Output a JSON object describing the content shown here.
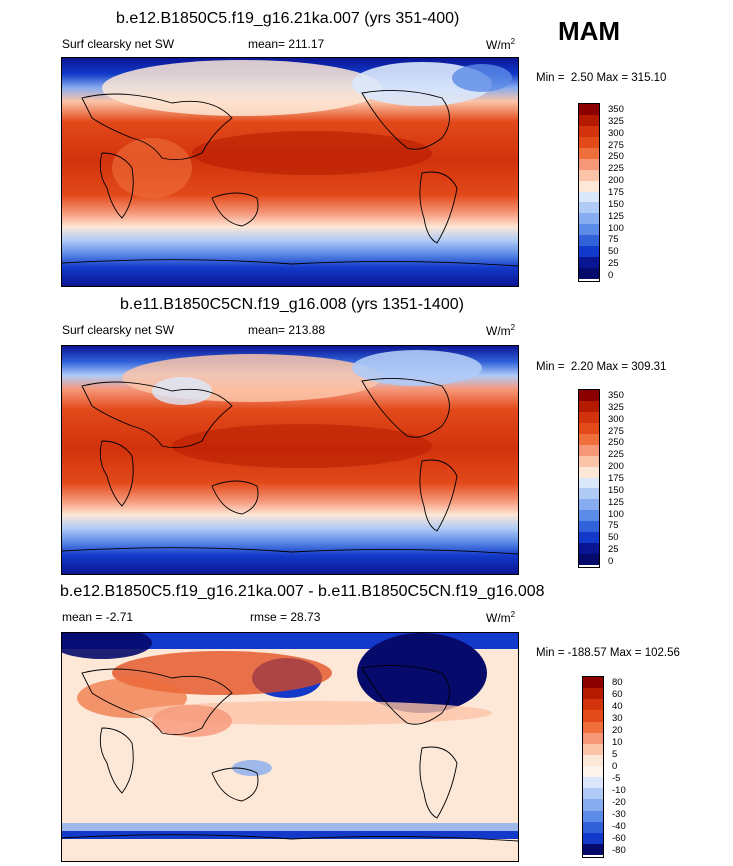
{
  "season": "MAM",
  "panels": [
    {
      "title": "b.e12.B1850C5.f19_g16.21ka.007 (yrs 351-400)",
      "left_label": "Surf clearsky net SW",
      "stat_label": "mean=",
      "stat_value": "211.17",
      "stat2_label": "",
      "stat2_value": "",
      "units": "W/m",
      "units_sup": "2",
      "min_label": "Min =",
      "min_value": "2.50",
      "max_label": "Max =",
      "max_value": "315.10",
      "colorbar_labels": [
        "350",
        "325",
        "300",
        "275",
        "250",
        "225",
        "200",
        "175",
        "150",
        "125",
        "100",
        "75",
        "50",
        "25",
        "0"
      ],
      "colorbar_colors": [
        "#8a0000",
        "#b31a00",
        "#d2320c",
        "#e24a1a",
        "#ee6f3c",
        "#f6977a",
        "#fbc4a8",
        "#fde7d6",
        "#dbe8fb",
        "#b0cbf6",
        "#87acef",
        "#5b8be6",
        "#3162da",
        "#1239c9",
        "#0a1594",
        "#050a6b"
      ]
    },
    {
      "title": "b.e11.B1850C5CN.f19_g16.008 (yrs 1351-1400)",
      "left_label": "Surf clearsky net SW",
      "stat_label": "mean=",
      "stat_value": "213.88",
      "stat2_label": "",
      "stat2_value": "",
      "units": "W/m",
      "units_sup": "2",
      "min_label": "Min =",
      "min_value": "2.20",
      "max_label": "Max =",
      "max_value": "309.31",
      "colorbar_labels": [
        "350",
        "325",
        "300",
        "275",
        "250",
        "225",
        "200",
        "175",
        "150",
        "125",
        "100",
        "75",
        "50",
        "25",
        "0"
      ],
      "colorbar_colors": [
        "#8a0000",
        "#b31a00",
        "#d2320c",
        "#e24a1a",
        "#ee6f3c",
        "#f6977a",
        "#fbc4a8",
        "#fde7d6",
        "#dbe8fb",
        "#b0cbf6",
        "#87acef",
        "#5b8be6",
        "#3162da",
        "#1239c9",
        "#0a1594",
        "#050a6b"
      ]
    },
    {
      "title": "b.e12.B1850C5.f19_g16.21ka.007 - b.e11.B1850C5CN.f19_g16.008",
      "left_label": "mean =",
      "stat_label": "",
      "stat_value": "-2.71",
      "stat2_label": "rmse =",
      "stat2_value": "28.73",
      "units": "W/m",
      "units_sup": "2",
      "min_label": "Min =",
      "min_value": "-188.57",
      "max_label": "Max =",
      "max_value": "102.56",
      "colorbar_labels": [
        "80",
        "60",
        "40",
        "30",
        "20",
        "10",
        "5",
        "0",
        "-5",
        "-10",
        "-20",
        "-30",
        "-40",
        "-60",
        "-80"
      ],
      "colorbar_colors": [
        "#8a0000",
        "#b31a00",
        "#d2320c",
        "#e24a1a",
        "#ee6f3c",
        "#f6977a",
        "#fbc4a8",
        "#fde7d6",
        "#fef4ec",
        "#dbe8fb",
        "#b0cbf6",
        "#87acef",
        "#5b8be6",
        "#3162da",
        "#1239c9",
        "#050a6b"
      ]
    }
  ]
}
